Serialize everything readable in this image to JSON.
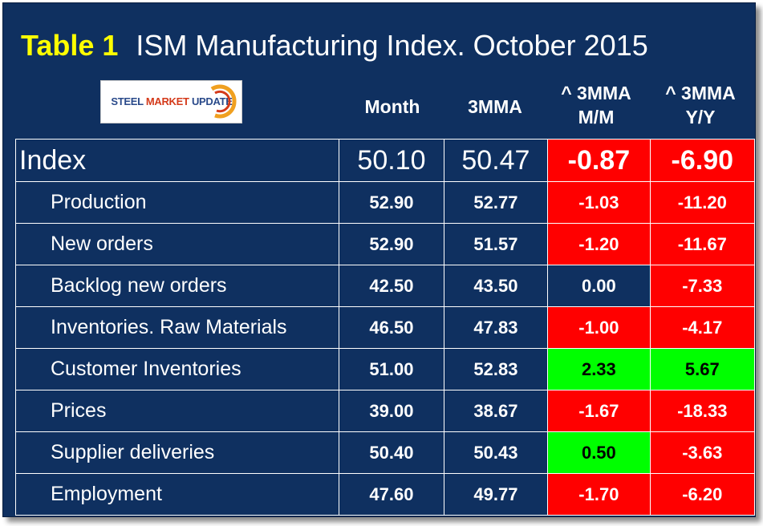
{
  "title": {
    "label": "Table 1",
    "text": "ISM Manufacturing Index.  October 2015"
  },
  "logo": {
    "part1": "STEEL ",
    "part2": "MARKET",
    "part3": " UPDATE"
  },
  "headers": {
    "month": "Month",
    "mma": "3MMA",
    "mm_line1": "^ 3MMA",
    "mm_line2": "M/M",
    "yy_line1": "^ 3MMA",
    "yy_line2": "Y/Y"
  },
  "rows": [
    {
      "name": "Index",
      "month": "50.10",
      "mma": "50.47",
      "mm": "-0.87",
      "yy": "-6.90"
    },
    {
      "name": "Production",
      "month": "52.90",
      "mma": "52.77",
      "mm": "-1.03",
      "yy": "-11.20"
    },
    {
      "name": "New orders",
      "month": "52.90",
      "mma": "51.57",
      "mm": "-1.20",
      "yy": "-11.67"
    },
    {
      "name": "Backlog new orders",
      "month": "42.50",
      "mma": "43.50",
      "mm": "0.00",
      "yy": "-7.33"
    },
    {
      "name": "Inventories. Raw Materials",
      "month": "46.50",
      "mma": "47.83",
      "mm": "-1.00",
      "yy": "-4.17"
    },
    {
      "name": "Customer  Inventories",
      "month": "51.00",
      "mma": "52.83",
      "mm": "2.33",
      "yy": "5.67"
    },
    {
      "name": "Prices",
      "month": "39.00",
      "mma": "38.67",
      "mm": "-1.67",
      "yy": "-18.33"
    },
    {
      "name": "Supplier deliveries",
      "month": "50.40",
      "mma": "50.43",
      "mm": "0.50",
      "yy": "-3.63"
    },
    {
      "name": "Employment",
      "month": "47.60",
      "mma": "49.77",
      "mm": "-1.70",
      "yy": "-6.20"
    }
  ],
  "colors": {
    "background": "#0f3060",
    "negative": "#ff0000",
    "positive": "#00ff00",
    "title_label": "#ffff00"
  }
}
